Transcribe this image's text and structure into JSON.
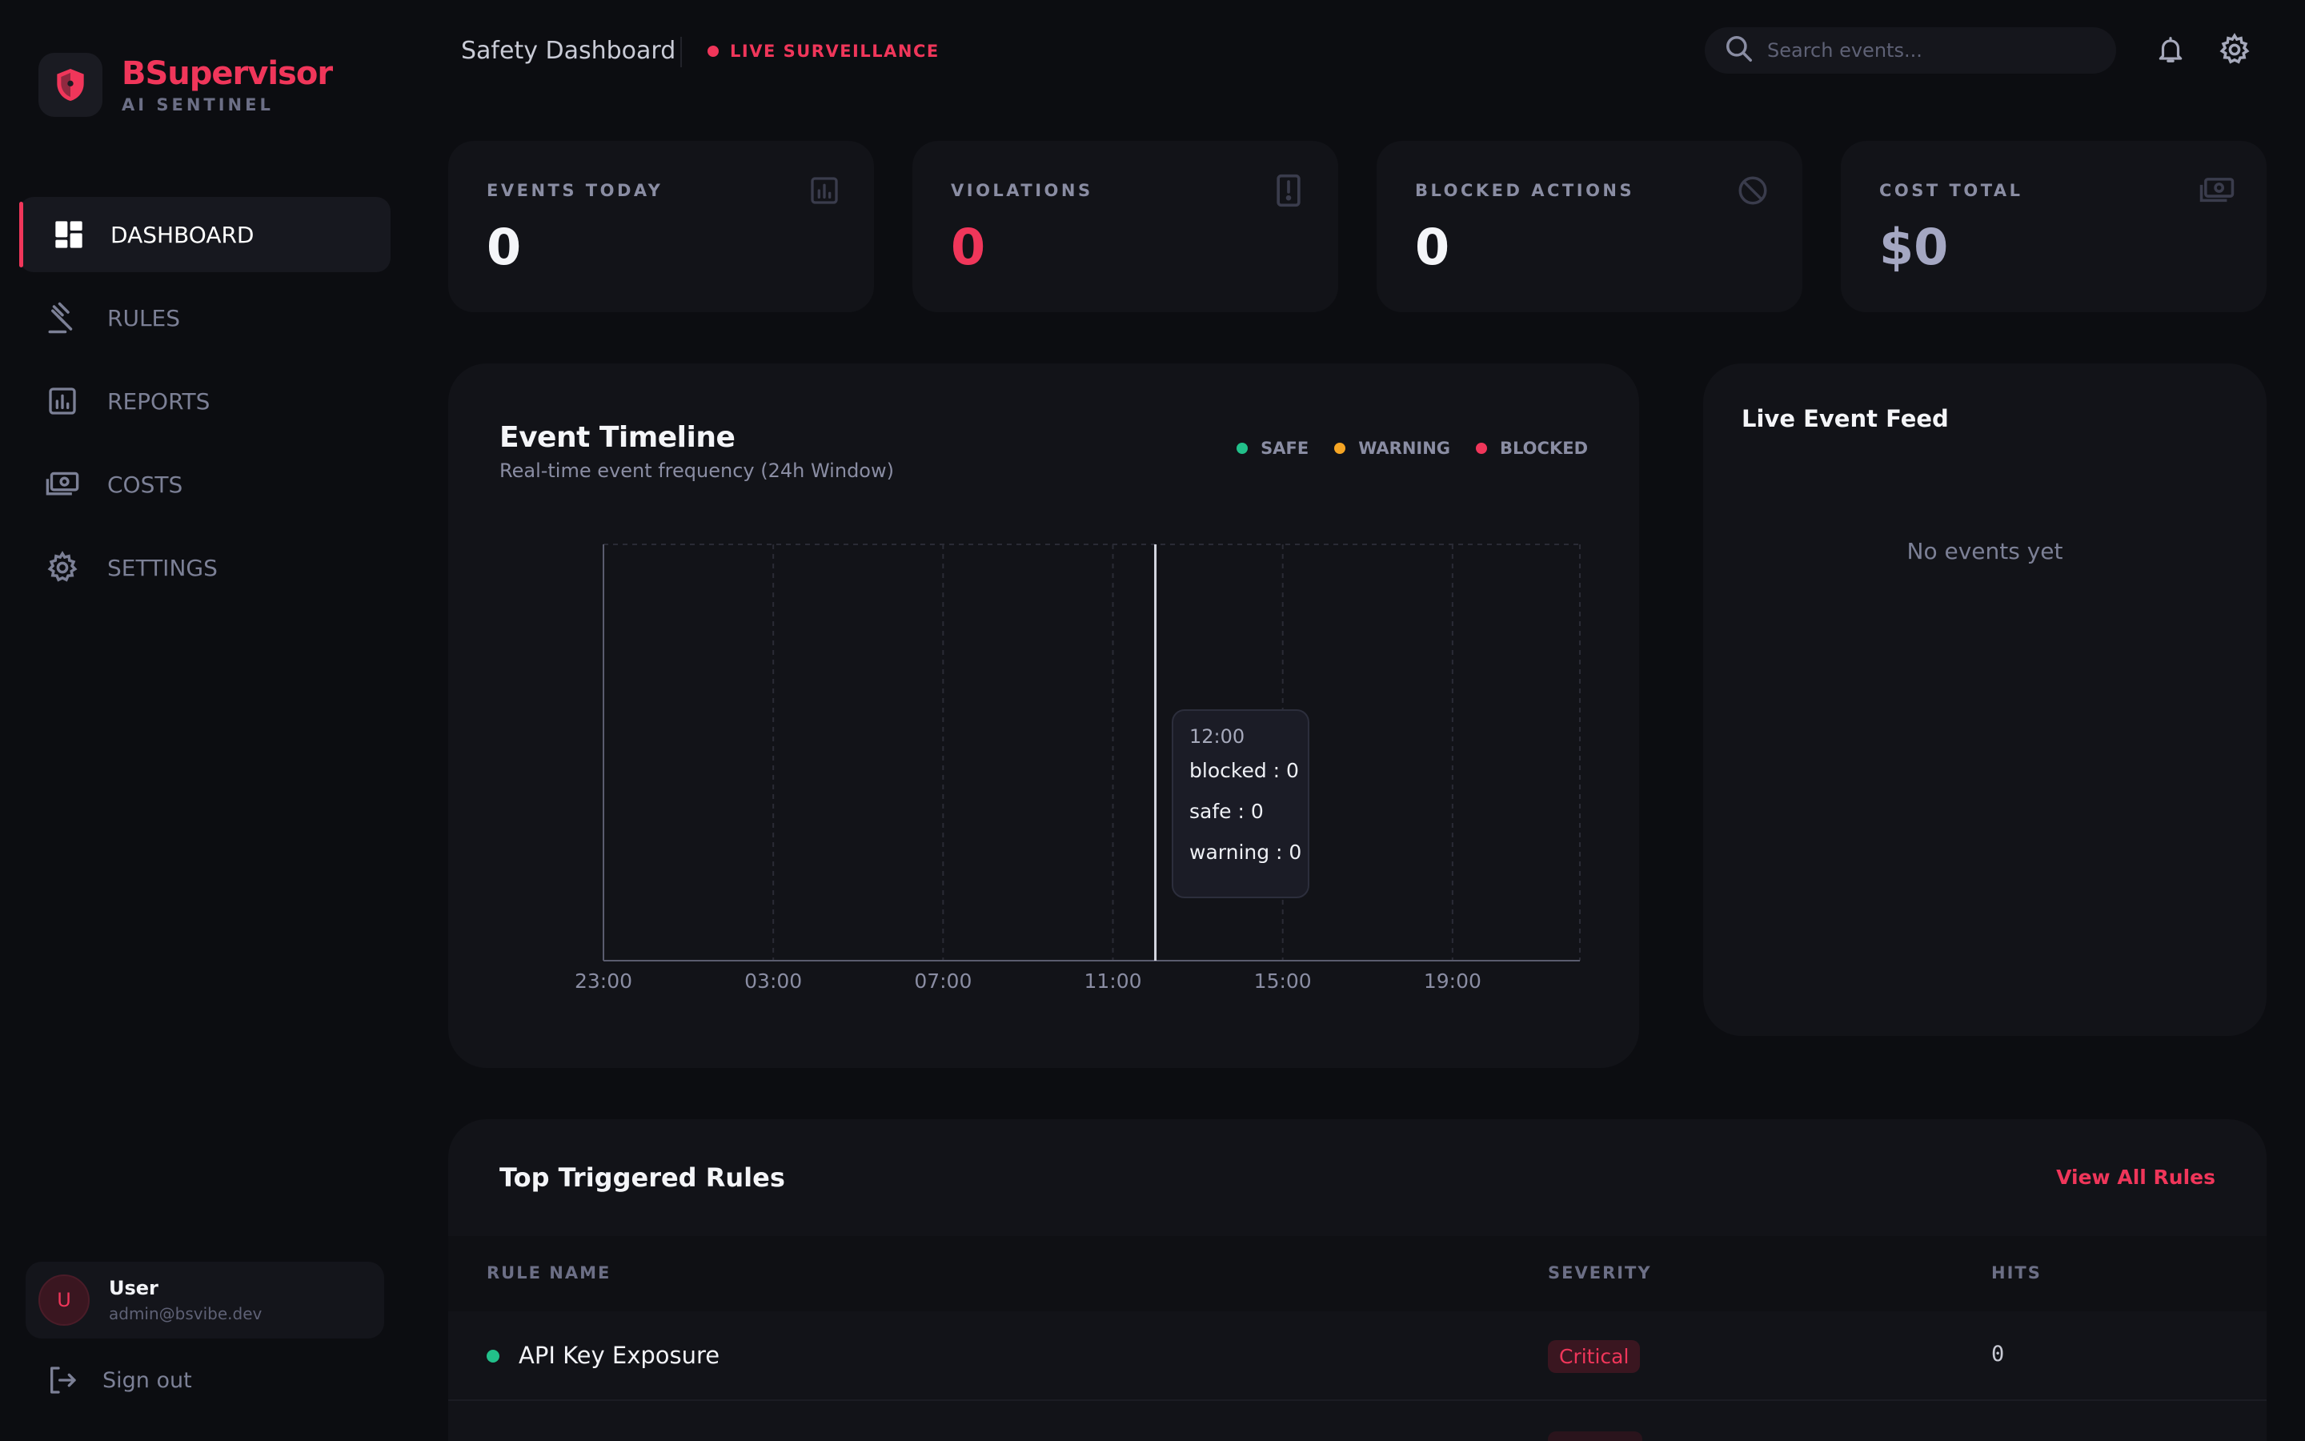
{
  "brand": {
    "name": "BSupervisor",
    "subtitle": "AI SENTINEL"
  },
  "sidebar": {
    "items": [
      {
        "label": "DASHBOARD",
        "icon": "dashboard-icon",
        "active": true
      },
      {
        "label": "RULES",
        "icon": "gavel-icon",
        "active": false
      },
      {
        "label": "REPORTS",
        "icon": "reports-icon",
        "active": false
      },
      {
        "label": "COSTS",
        "icon": "costs-icon",
        "active": false
      },
      {
        "label": "SETTINGS",
        "icon": "gear-icon",
        "active": false
      }
    ],
    "user": {
      "initial": "U",
      "name": "User",
      "email": "admin@bsvibe.dev"
    },
    "signout_label": "Sign out"
  },
  "header": {
    "title": "Safety Dashboard",
    "live_label": "LIVE SURVEILLANCE",
    "search_placeholder": "Search events..."
  },
  "stats": [
    {
      "label": "EVENTS TODAY",
      "value": "0",
      "color": "#f4f5f8",
      "icon": "bar-chart-icon"
    },
    {
      "label": "VIOLATIONS",
      "value": "0",
      "color": "#f0365a",
      "icon": "alert-icon"
    },
    {
      "label": "BLOCKED ACTIONS",
      "value": "0",
      "color": "#f4f5f8",
      "icon": "block-icon"
    },
    {
      "label": "COST TOTAL",
      "value": "$0",
      "color": "#a4a7c2",
      "icon": "money-icon"
    }
  ],
  "timeline": {
    "title": "Event Timeline",
    "subtitle": "Real-time event frequency (24h Window)",
    "legend": [
      {
        "label": "SAFE",
        "color": "#22c08a"
      },
      {
        "label": "WARNING",
        "color": "#f5a524"
      },
      {
        "label": "BLOCKED",
        "color": "#f0365a"
      }
    ],
    "tooltip": {
      "time": "12:00",
      "rows": [
        "blocked : 0",
        "safe : 0",
        "warning : 0"
      ]
    }
  },
  "chart_data": {
    "type": "line",
    "x": [
      "23:00",
      "03:00",
      "07:00",
      "11:00",
      "15:00",
      "19:00"
    ],
    "series": [
      {
        "name": "SAFE",
        "values": [
          0,
          0,
          0,
          0,
          0,
          0
        ]
      },
      {
        "name": "WARNING",
        "values": [
          0,
          0,
          0,
          0,
          0,
          0
        ]
      },
      {
        "name": "BLOCKED",
        "values": [
          0,
          0,
          0,
          0,
          0,
          0
        ]
      }
    ],
    "hover_x": "12:00",
    "grid": true,
    "legend_position": "top-right"
  },
  "feed": {
    "title": "Live Event Feed",
    "empty_text": "No events yet"
  },
  "rules": {
    "title": "Top Triggered Rules",
    "view_all_label": "View All Rules",
    "columns": [
      "RULE NAME",
      "SEVERITY",
      "HITS"
    ],
    "rows": [
      {
        "name": "API Key Exposure",
        "severity": "Critical",
        "hits": "0",
        "dot_color": "#22c08a"
      }
    ]
  }
}
